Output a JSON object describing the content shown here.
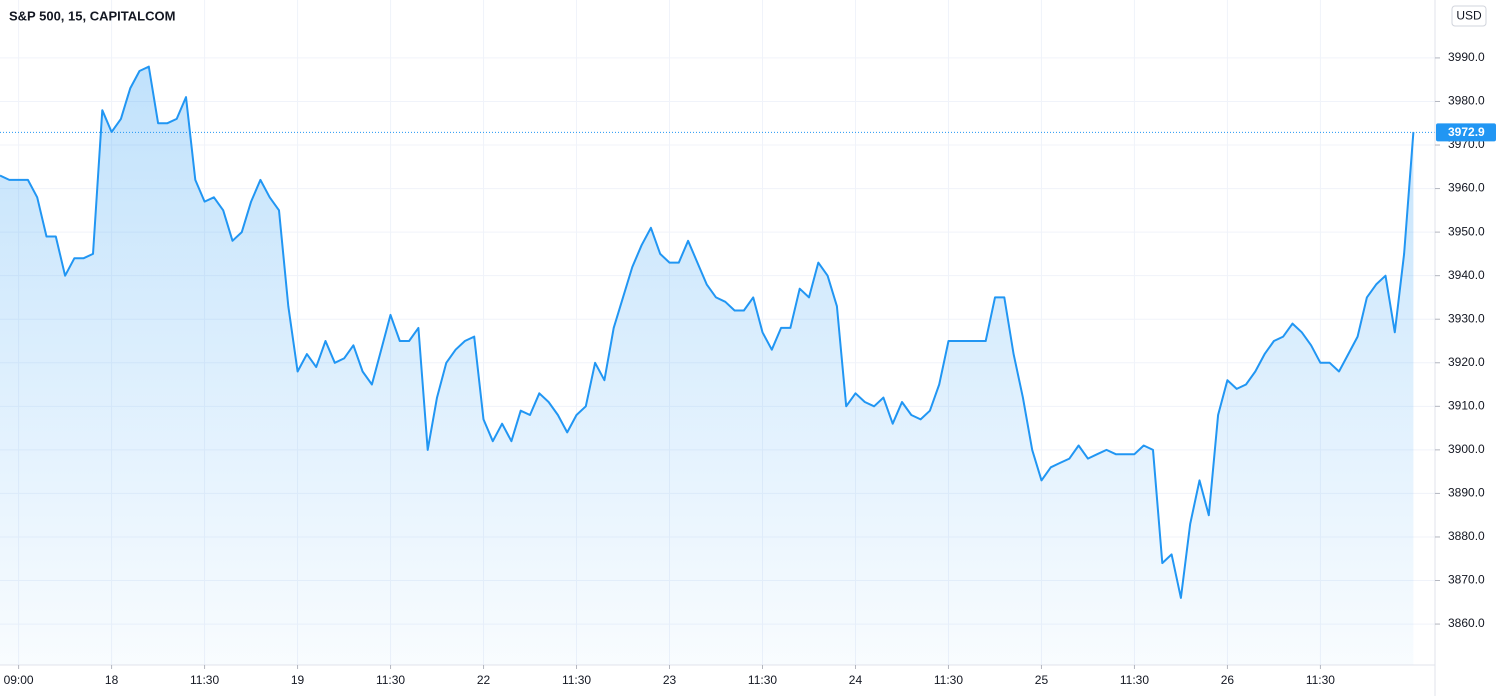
{
  "chart_data": {
    "type": "area",
    "title": "S&P 500, 15, CAPITALCOM",
    "currency": "USD",
    "color": "#2196f3",
    "grid": true,
    "x": [
      -2,
      -1,
      0,
      1,
      2,
      3,
      4,
      5,
      6,
      7,
      8,
      9,
      10,
      11,
      12,
      13,
      14,
      15,
      16,
      17,
      18,
      19,
      20,
      21,
      22,
      23,
      24,
      25,
      26,
      27,
      28,
      29,
      30,
      31,
      32,
      33,
      34,
      35,
      36,
      37,
      38,
      39,
      40,
      41,
      42,
      43,
      44,
      45,
      46,
      47,
      48,
      49,
      50,
      51,
      52,
      53,
      54,
      55,
      56,
      57,
      58,
      59,
      60,
      61,
      62,
      63,
      64,
      65,
      66,
      67,
      68,
      69,
      70,
      71,
      72,
      73,
      74,
      75,
      76,
      77,
      78,
      79,
      80,
      81,
      82,
      83,
      84,
      85,
      86,
      87,
      88,
      89,
      90,
      91,
      92,
      93,
      94,
      95,
      96,
      97,
      98,
      99,
      100,
      101,
      102,
      103,
      104,
      105,
      106,
      107,
      108,
      109,
      110,
      111,
      112,
      113,
      114,
      115,
      116,
      117,
      118,
      119,
      120,
      121,
      122,
      123,
      124,
      125,
      126,
      127,
      128,
      129,
      130,
      131,
      132,
      133,
      134,
      135,
      136,
      137,
      138,
      139,
      140,
      141,
      142,
      143,
      144,
      145,
      146,
      147,
      148,
      149,
      150
    ],
    "values": [
      3963,
      3962,
      3962,
      3962,
      3958,
      3949,
      3949,
      3940,
      3944,
      3944,
      3945,
      3978,
      3973,
      3976,
      3983,
      3987,
      3988,
      3975,
      3975,
      3976,
      3981,
      3962,
      3957,
      3958,
      3955,
      3948,
      3950,
      3957,
      3962,
      3958,
      3955,
      3933,
      3918,
      3922,
      3919,
      3925,
      3920,
      3921,
      3924,
      3918,
      3915,
      3923,
      3931,
      3925,
      3925,
      3928,
      3900,
      3912,
      3920,
      3923,
      3925,
      3926,
      3907,
      3902,
      3906,
      3902,
      3909,
      3908,
      3913,
      3911,
      3908,
      3904,
      3908,
      3910,
      3920,
      3916,
      3928,
      3935,
      3942,
      3947,
      3951,
      3945,
      3943,
      3943,
      3948,
      3943,
      3938,
      3935,
      3934,
      3932,
      3932,
      3935,
      3927,
      3923,
      3928,
      3928,
      3937,
      3935,
      3943,
      3940,
      3933,
      3910,
      3913,
      3911,
      3910,
      3912,
      3906,
      3911,
      3908,
      3907,
      3909,
      3915,
      3925,
      3925,
      3925,
      3925,
      3925,
      3935,
      3935,
      3922,
      3912,
      3900,
      3893,
      3896,
      3897,
      3898,
      3901,
      3898,
      3899,
      3900,
      3899,
      3899,
      3899,
      3901,
      3900,
      3874,
      3876,
      3866,
      3883,
      3893,
      3885,
      3908,
      3916,
      3914,
      3915,
      3918,
      3922,
      3925,
      3926,
      3929,
      3927,
      3924,
      3920,
      3920,
      3918,
      3922,
      3926,
      3935,
      3938,
      3940,
      3927,
      3945,
      3973
    ],
    "last_price": 3972.9,
    "xlim": [
      -2,
      152
    ],
    "xticks": [
      {
        "value": 0,
        "label": "09:00"
      },
      {
        "value": 10,
        "label": "18"
      },
      {
        "value": 20,
        "label": "11:30"
      },
      {
        "value": 30,
        "label": "19"
      },
      {
        "value": 40,
        "label": "11:30"
      },
      {
        "value": 50,
        "label": "22"
      },
      {
        "value": 60,
        "label": "11:30"
      },
      {
        "value": 70,
        "label": "23"
      },
      {
        "value": 80,
        "label": "11:30"
      },
      {
        "value": 90,
        "label": "24"
      },
      {
        "value": 100,
        "label": "11:30"
      },
      {
        "value": 110,
        "label": "25"
      },
      {
        "value": 120,
        "label": "11:30"
      },
      {
        "value": 130,
        "label": "26"
      },
      {
        "value": 140,
        "label": "11:30"
      }
    ],
    "ylim": [
      3850.6,
      4003.3
    ],
    "yticks": [
      {
        "value": 3860,
        "label": "3860.0"
      },
      {
        "value": 3870,
        "label": "3870.0"
      },
      {
        "value": 3880,
        "label": "3880.0"
      },
      {
        "value": 3890,
        "label": "3890.0"
      },
      {
        "value": 3900,
        "label": "3900.0"
      },
      {
        "value": 3910,
        "label": "3910.0"
      },
      {
        "value": 3920,
        "label": "3920.0"
      },
      {
        "value": 3930,
        "label": "3930.0"
      },
      {
        "value": 3940,
        "label": "3940.0"
      },
      {
        "value": 3950,
        "label": "3950.0"
      },
      {
        "value": 3960,
        "label": "3960.0"
      },
      {
        "value": 3970,
        "label": "3970.0"
      },
      {
        "value": 3980,
        "label": "3980.0"
      },
      {
        "value": 3990,
        "label": "3990.0"
      }
    ]
  }
}
